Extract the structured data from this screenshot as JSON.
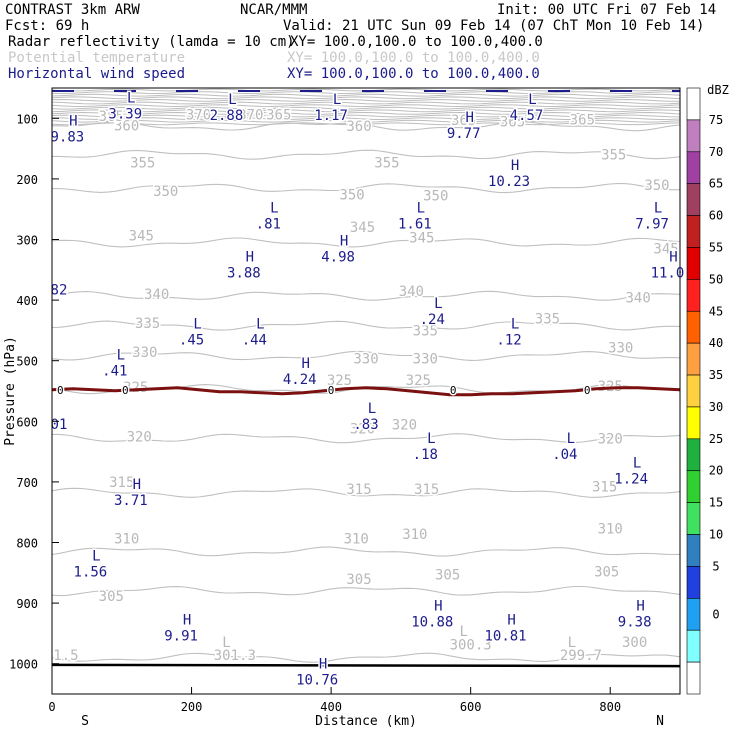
{
  "header": {
    "title": "CONTRAST  3km ARW",
    "center": "NCAR/MMM",
    "init": "Init: 00 UTC Fri 07 Feb 14",
    "fcst": "Fcst:   69 h",
    "valid": "Valid: 21 UTC Sun 09 Feb 14 (07 ChT Mon 10 Feb 14)",
    "fields": [
      {
        "label": "Radar reflectivity (lamda = 10 cm)",
        "xy": "XY= 100.0,100.0 to 100.0,400.0",
        "color": "#000000"
      },
      {
        "label": "Potential temperature",
        "xy": "XY= 100.0,100.0 to 100.0,400.0",
        "color": "#c8c8c8"
      },
      {
        "label": "Horizontal wind speed",
        "xy": "XY= 100.0,100.0 to 100.0,400.0",
        "color": "#1c1c8c"
      }
    ]
  },
  "chart_data": {
    "type": "cross-section",
    "xlabel": "Distance (km)",
    "ylabel": "Pressure (hPa)",
    "xlim": [
      0,
      900
    ],
    "ylim": [
      1050,
      50
    ],
    "x_ticks": [
      0,
      200,
      400,
      600,
      800
    ],
    "y_ticks": [
      100,
      200,
      300,
      400,
      500,
      600,
      700,
      800,
      900,
      1000
    ],
    "x_end_labels": {
      "left": "S",
      "right": "N"
    },
    "theta_contours": [
      {
        "value": 300,
        "p": 990
      },
      {
        "value": 305,
        "p": 880
      },
      {
        "value": 310,
        "p": 815
      },
      {
        "value": 315,
        "p": 718
      },
      {
        "value": 320,
        "p": 628
      },
      {
        "value": 325,
        "p": 547
      },
      {
        "value": 330,
        "p": 492
      },
      {
        "value": 335,
        "p": 442
      },
      {
        "value": 340,
        "p": 393
      },
      {
        "value": 345,
        "p": 305
      },
      {
        "value": 350,
        "p": 215
      },
      {
        "value": 355,
        "p": 160
      },
      {
        "value": 360,
        "p": 113
      }
    ],
    "theta_labels": [
      {
        "text": "360",
        "x": 107,
        "p": 112
      },
      {
        "text": "360",
        "x": 440,
        "p": 113
      },
      {
        "text": "365",
        "x": 85,
        "p": 96
      },
      {
        "text": "370",
        "x": 210,
        "p": 94
      },
      {
        "text": "365",
        "x": 325,
        "p": 94
      },
      {
        "text": "370",
        "x": 285,
        "p": 94
      },
      {
        "text": "365",
        "x": 590,
        "p": 103
      },
      {
        "text": "365",
        "x": 660,
        "p": 105
      },
      {
        "text": "365",
        "x": 760,
        "p": 102
      },
      {
        "text": "355",
        "x": 130,
        "p": 173
      },
      {
        "text": "355",
        "x": 480,
        "p": 173
      },
      {
        "text": "355",
        "x": 805,
        "p": 160
      },
      {
        "text": "350",
        "x": 163,
        "p": 220
      },
      {
        "text": "350",
        "x": 430,
        "p": 226
      },
      {
        "text": "350",
        "x": 550,
        "p": 227
      },
      {
        "text": "350",
        "x": 867,
        "p": 210
      },
      {
        "text": "345",
        "x": 128,
        "p": 293
      },
      {
        "text": "345",
        "x": 445,
        "p": 279
      },
      {
        "text": "345",
        "x": 530,
        "p": 297
      },
      {
        "text": "345",
        "x": 880,
        "p": 315
      },
      {
        "text": "340",
        "x": 150,
        "p": 390
      },
      {
        "text": "340",
        "x": 515,
        "p": 385
      },
      {
        "text": "340",
        "x": 840,
        "p": 396
      },
      {
        "text": "335",
        "x": 137,
        "p": 438
      },
      {
        "text": "335",
        "x": 535,
        "p": 450
      },
      {
        "text": "335",
        "x": 710,
        "p": 430
      },
      {
        "text": "330",
        "x": 133,
        "p": 486
      },
      {
        "text": "330",
        "x": 450,
        "p": 496
      },
      {
        "text": "330",
        "x": 535,
        "p": 496
      },
      {
        "text": "330",
        "x": 815,
        "p": 478
      },
      {
        "text": "325",
        "x": 120,
        "p": 543
      },
      {
        "text": "325",
        "x": 412,
        "p": 532
      },
      {
        "text": "325",
        "x": 525,
        "p": 532
      },
      {
        "text": "325",
        "x": 800,
        "p": 542
      },
      {
        "text": "320",
        "x": 125,
        "p": 625
      },
      {
        "text": "320",
        "x": 445,
        "p": 612
      },
      {
        "text": "320",
        "x": 505,
        "p": 605
      },
      {
        "text": "320",
        "x": 800,
        "p": 628
      },
      {
        "text": "315",
        "x": 100,
        "p": 700
      },
      {
        "text": "315",
        "x": 440,
        "p": 712
      },
      {
        "text": "315",
        "x": 537,
        "p": 712
      },
      {
        "text": "315",
        "x": 792,
        "p": 708
      },
      {
        "text": "310",
        "x": 107,
        "p": 793
      },
      {
        "text": "310",
        "x": 436,
        "p": 793
      },
      {
        "text": "310",
        "x": 520,
        "p": 786
      },
      {
        "text": "310",
        "x": 800,
        "p": 777
      },
      {
        "text": "305",
        "x": 85,
        "p": 888
      },
      {
        "text": "305",
        "x": 440,
        "p": 860
      },
      {
        "text": "305",
        "x": 567,
        "p": 853
      },
      {
        "text": "305",
        "x": 795,
        "p": 848
      },
      {
        "text": "L",
        "x": 250,
        "p": 964
      },
      {
        "text": "301.3",
        "x": 262,
        "p": 986
      },
      {
        "text": "L",
        "x": 590,
        "p": 946
      },
      {
        "text": "300.3",
        "x": 600,
        "p": 968
      },
      {
        "text": "L",
        "x": 745,
        "p": 964
      },
      {
        "text": "299.7",
        "x": 758,
        "p": 986
      },
      {
        "text": "300",
        "x": 835,
        "p": 964
      },
      {
        "text": "1.5",
        "x": 20,
        "p": 986
      }
    ],
    "wind_extrema": [
      {
        "type": "L",
        "value": "3.39",
        "x": 105,
        "p": 84
      },
      {
        "type": "L",
        "value": "2.88",
        "x": 250,
        "p": 86
      },
      {
        "type": "L",
        "value": "1.17",
        "x": 400,
        "p": 86
      },
      {
        "type": "L",
        "value": "4.57",
        "x": 680,
        "p": 86
      },
      {
        "type": "H",
        "value": "9.83",
        "x": 22,
        "p": 122
      },
      {
        "type": "H",
        "value": "9.77",
        "x": 590,
        "p": 116
      },
      {
        "type": "H",
        "value": "10.23",
        "x": 655,
        "p": 195
      },
      {
        "type": "L",
        "value": ".81",
        "x": 310,
        "p": 265
      },
      {
        "type": "L",
        "value": "1.61",
        "x": 520,
        "p": 265
      },
      {
        "type": "L",
        "value": "7.97",
        "x": 860,
        "p": 265
      },
      {
        "type": "H",
        "value": "4.98",
        "x": 410,
        "p": 320
      },
      {
        "type": "H",
        "value": "3.88",
        "x": 275,
        "p": 346
      },
      {
        "type": "H",
        "value": "11.0",
        "x": 882,
        "p": 346
      },
      {
        "type": "",
        "value": "82",
        "x": 10,
        "p": 374
      },
      {
        "type": "L",
        "value": ".24",
        "x": 545,
        "p": 423
      },
      {
        "type": "L",
        "value": ".45",
        "x": 200,
        "p": 457
      },
      {
        "type": "L",
        "value": ".44",
        "x": 290,
        "p": 457
      },
      {
        "type": "L",
        "value": ".12",
        "x": 655,
        "p": 457
      },
      {
        "type": "L",
        "value": ".41",
        "x": 90,
        "p": 508
      },
      {
        "type": "H",
        "value": "4.24",
        "x": 355,
        "p": 522
      },
      {
        "type": "L",
        "value": ".83",
        "x": 450,
        "p": 596
      },
      {
        "type": "",
        "value": "01",
        "x": 10,
        "p": 596
      },
      {
        "type": "L",
        "value": ".18",
        "x": 535,
        "p": 646
      },
      {
        "type": "L",
        "value": ".04",
        "x": 735,
        "p": 646
      },
      {
        "type": "L",
        "value": "1.24",
        "x": 830,
        "p": 686
      },
      {
        "type": "H",
        "value": "3.71",
        "x": 113,
        "p": 722
      },
      {
        "type": "L",
        "value": "1.56",
        "x": 55,
        "p": 840
      },
      {
        "type": "H",
        "value": "9.91",
        "x": 185,
        "p": 945
      },
      {
        "type": "H",
        "value": "10.88",
        "x": 545,
        "p": 922
      },
      {
        "type": "H",
        "value": "10.81",
        "x": 650,
        "p": 945
      },
      {
        "type": "H",
        "value": "9.38",
        "x": 835,
        "p": 922
      },
      {
        "type": "H",
        "value": "10.76",
        "x": 380,
        "p": 1018
      }
    ],
    "zero_contour": {
      "label": "0",
      "p_approx": 548
    },
    "colorbar": {
      "title": "dBZ",
      "levels": [
        75,
        70,
        65,
        60,
        55,
        50,
        45,
        40,
        35,
        30,
        25,
        20,
        15,
        10,
        5,
        0
      ],
      "colors": [
        "#ffffff",
        "#c080c0",
        "#a040a0",
        "#a04060",
        "#c02020",
        "#e00000",
        "#ff2020",
        "#ff6000",
        "#ffa040",
        "#ffd040",
        "#ffff00",
        "#20b040",
        "#30d030",
        "#40e060",
        "#3080c0",
        "#2040e0",
        "#20a0f0",
        "#80ffff",
        "#ffffff"
      ]
    }
  }
}
